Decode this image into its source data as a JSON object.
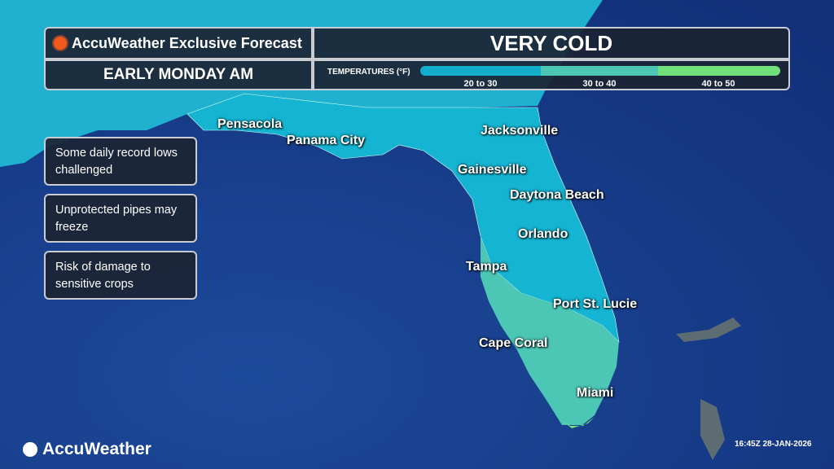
{
  "header": {
    "brand": "AccuWeather",
    "subtitle_brand": "Exclusive Forecast",
    "title": "VERY COLD",
    "period": "EARLY MONDAY AM"
  },
  "legend": {
    "title": "TEMPERATURES (°F)",
    "items": [
      {
        "label": "20 to 30",
        "color": "#14aecd"
      },
      {
        "label": "30 to 40",
        "color": "#4cc7b5"
      },
      {
        "label": "40 to 50",
        "color": "#6fe07a"
      }
    ]
  },
  "notes": [
    "Some daily record lows challenged",
    "Unprotected pipes may freeze",
    "Risk of damage to sensitive crops"
  ],
  "cities": [
    "Pensacola",
    "Panama City",
    "Jacksonville",
    "Gainesville",
    "Daytona Beach",
    "Orlando",
    "Tampa",
    "Port St. Lucie",
    "Cape Coral",
    "Miami"
  ],
  "footer": {
    "logo": "AccuWeather",
    "timestamp": "16:45Z 28-JAN-2026"
  },
  "colors": {
    "ocean": "#17377f",
    "land_out": "#1ea8c8"
  }
}
